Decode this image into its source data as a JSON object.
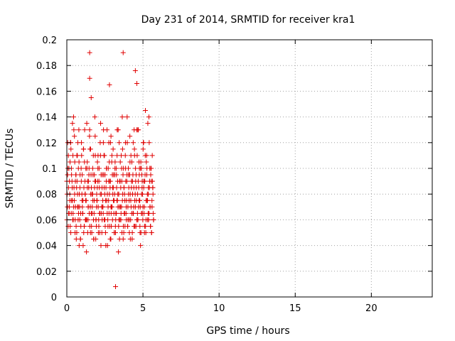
{
  "chart_data": {
    "type": "scatter",
    "title": "Day 231 of 2014, SRMTID for receiver kra1",
    "xlabel": "GPS time / hours",
    "ylabel": "SRMTID / TECUs",
    "xlim": [
      0,
      24
    ],
    "ylim": [
      0,
      0.2
    ],
    "xticks": [
      0,
      5,
      10,
      15,
      20
    ],
    "xtick_labels": [
      "0",
      "5",
      "10",
      "15",
      "20"
    ],
    "yticks": [
      0,
      0.02,
      0.04,
      0.06,
      0.08,
      0.1,
      0.12,
      0.14,
      0.16,
      0.18,
      0.2
    ],
    "ytick_labels": [
      "0",
      "0.02",
      "0.04",
      "0.06",
      "0.08",
      "0.1",
      "0.12",
      "0.14",
      "0.16",
      "0.18",
      "0.2"
    ],
    "grid": true,
    "marker": "+",
    "marker_color": "#e00000",
    "series": [
      {
        "name": "SRMTID",
        "x": [
          0.0,
          0.05,
          0.1,
          0.15,
          0.2,
          0.25,
          0.3,
          0.35,
          0.4,
          0.45,
          0.5,
          0.55,
          0.6,
          0.65,
          0.7,
          0.75,
          0.8,
          0.85,
          0.9,
          0.95,
          1.0,
          1.05,
          1.1,
          1.15,
          1.2,
          1.25,
          1.3,
          1.35,
          1.4,
          1.45,
          1.5,
          1.55,
          1.6,
          1.65,
          1.7,
          1.75,
          1.8,
          1.85,
          1.9,
          1.95,
          2.0,
          2.05,
          2.1,
          2.15,
          2.2,
          2.25,
          2.3,
          2.35,
          2.4,
          2.45,
          2.5,
          2.55,
          2.6,
          2.65,
          2.7,
          2.75,
          2.8,
          2.85,
          2.9,
          2.95,
          3.0,
          3.05,
          3.1,
          3.15,
          3.2,
          3.25,
          3.3,
          3.35,
          3.4,
          3.45,
          3.5,
          3.55,
          3.6,
          3.65,
          3.7,
          3.75,
          3.8,
          3.85,
          3.9,
          3.95,
          4.0,
          4.05,
          4.1,
          4.15,
          4.2,
          4.25,
          4.3,
          4.35,
          4.4,
          4.45,
          4.5,
          4.55,
          4.6,
          4.65,
          4.7,
          4.75,
          4.8,
          4.85,
          4.9,
          4.95,
          5.0,
          5.05,
          5.1,
          5.15,
          5.2,
          5.25,
          5.3,
          5.35,
          5.4,
          5.45,
          5.5,
          5.55,
          5.6,
          5.65,
          5.7,
          0.02,
          0.07,
          0.12,
          0.17,
          0.22,
          0.27,
          0.32,
          0.37,
          0.42,
          0.47,
          0.52,
          0.57,
          0.62,
          0.67,
          0.72,
          0.77,
          0.82,
          0.87,
          0.92,
          0.97,
          1.02,
          1.07,
          1.12,
          1.17,
          1.22,
          1.27,
          1.32,
          1.37,
          1.42,
          1.47,
          1.52,
          1.57,
          1.62,
          1.67,
          1.72,
          1.77,
          1.82,
          1.87,
          1.92,
          1.97,
          2.02,
          2.07,
          2.12,
          2.17,
          2.22,
          2.27,
          2.32,
          2.37,
          2.42,
          2.47,
          2.52,
          2.57,
          2.62,
          2.67,
          2.72,
          2.77,
          2.82,
          2.87,
          2.92,
          2.97,
          3.02,
          3.07,
          3.12,
          3.17,
          3.22,
          3.27,
          3.32,
          3.37,
          3.42,
          3.47,
          3.52,
          3.57,
          3.62,
          3.67,
          3.72,
          3.77,
          3.82,
          3.87,
          3.92,
          3.97,
          4.02,
          4.07,
          4.12,
          4.17,
          4.22,
          4.27,
          4.32,
          4.37,
          4.42,
          4.47,
          4.52,
          4.57,
          4.62,
          4.67,
          4.72,
          4.77,
          4.82,
          4.87,
          4.92,
          4.97,
          5.02,
          5.07,
          5.12,
          5.17,
          5.22,
          5.27,
          5.32,
          5.37,
          5.42,
          5.47,
          5.52,
          5.57,
          5.62,
          5.67,
          0.04,
          0.09,
          0.14,
          0.19,
          0.24,
          0.29,
          0.34,
          0.39,
          0.44,
          0.49,
          0.54,
          0.59,
          0.64,
          0.69,
          0.74,
          0.79,
          0.84,
          0.89,
          0.94,
          0.99,
          1.04,
          1.09,
          1.14,
          1.19,
          1.24,
          1.29,
          1.34,
          1.39,
          1.44,
          1.49,
          1.54,
          1.59,
          1.64,
          1.69,
          1.74,
          1.79,
          1.84,
          1.89,
          1.94,
          1.99,
          2.04,
          2.09,
          2.14,
          2.19,
          2.24,
          2.29,
          2.34,
          2.39,
          2.44,
          2.49,
          2.54,
          2.59,
          2.64,
          2.69,
          2.74,
          2.79,
          2.84,
          2.89,
          2.94,
          2.99,
          3.04,
          3.09,
          3.14,
          3.19,
          3.24,
          3.29,
          3.34,
          3.39,
          3.44,
          3.49,
          3.54,
          3.59,
          3.64,
          3.69,
          3.74,
          3.79,
          3.84,
          3.89,
          3.94,
          3.99,
          4.04,
          4.09,
          4.14,
          4.19,
          4.24,
          4.29,
          4.34,
          4.39,
          4.44,
          4.49,
          4.54,
          4.59,
          4.64,
          4.69,
          4.74,
          4.79,
          4.84,
          4.89,
          4.94,
          4.99,
          5.04,
          5.09,
          5.14,
          5.19,
          5.24,
          5.29,
          5.34,
          5.39,
          5.44,
          5.49,
          5.54,
          5.59,
          5.64,
          5.69,
          0.01,
          0.06,
          0.11,
          0.16,
          0.21,
          0.26,
          0.31,
          0.36,
          0.41,
          0.46,
          0.51,
          0.56,
          0.61,
          0.66,
          0.71,
          0.76,
          0.81,
          0.86,
          0.91,
          0.96,
          1.01,
          1.06,
          1.11,
          1.16,
          1.21,
          1.26,
          1.31,
          1.36,
          1.41,
          1.46,
          1.51,
          1.56,
          1.61,
          1.66,
          1.71,
          1.76,
          1.81,
          1.86,
          1.91,
          1.96,
          2.01,
          2.06,
          2.11,
          2.16,
          2.21,
          2.26,
          2.31,
          2.36,
          2.41,
          2.46,
          2.51,
          2.56,
          2.61,
          2.66,
          2.71,
          2.76,
          2.81,
          2.86,
          2.91,
          2.96,
          3.01,
          3.06,
          3.11,
          3.16,
          3.21,
          3.26,
          3.31,
          3.36,
          3.41,
          3.46,
          3.51,
          3.56,
          3.61,
          3.66,
          3.71,
          3.76,
          3.81,
          3.86,
          3.91,
          3.96,
          4.01,
          4.06,
          4.11,
          4.16,
          4.21,
          4.26,
          4.31,
          4.36,
          4.41,
          4.46,
          4.51,
          4.56,
          4.61,
          4.66,
          4.71,
          4.76,
          4.81,
          4.86,
          4.91,
          4.96,
          5.01,
          5.06,
          5.11,
          5.16,
          5.21,
          5.26,
          5.31,
          5.36,
          5.41,
          5.46,
          5.51,
          5.56,
          5.61,
          5.66,
          1.5,
          1.5,
          2.8,
          3.7,
          4.5,
          4.6,
          1.6,
          2.9,
          3.2
        ],
        "y": [
          0.09,
          0.095,
          0.11,
          0.065,
          0.075,
          0.12,
          0.1,
          0.085,
          0.11,
          0.07,
          0.125,
          0.06,
          0.095,
          0.05,
          0.08,
          0.07,
          0.105,
          0.06,
          0.045,
          0.09,
          0.075,
          0.065,
          0.115,
          0.055,
          0.08,
          0.1,
          0.06,
          0.085,
          0.07,
          0.095,
          0.13,
          0.05,
          0.065,
          0.08,
          0.1,
          0.06,
          0.075,
          0.09,
          0.045,
          0.07,
          0.085,
          0.11,
          0.055,
          0.065,
          0.08,
          0.095,
          0.05,
          0.07,
          0.12,
          0.085,
          0.06,
          0.075,
          0.1,
          0.065,
          0.055,
          0.09,
          0.08,
          0.045,
          0.07,
          0.105,
          0.06,
          0.085,
          0.075,
          0.095,
          0.05,
          0.065,
          0.11,
          0.08,
          0.055,
          0.07,
          0.09,
          0.06,
          0.1,
          0.075,
          0.045,
          0.085,
          0.065,
          0.12,
          0.07,
          0.095,
          0.055,
          0.08,
          0.06,
          0.105,
          0.075,
          0.09,
          0.05,
          0.065,
          0.085,
          0.11,
          0.07,
          0.095,
          0.06,
          0.08,
          0.13,
          0.075,
          0.055,
          0.1,
          0.065,
          0.09,
          0.07,
          0.085,
          0.05,
          0.11,
          0.06,
          0.095,
          0.075,
          0.08,
          0.065,
          0.1,
          0.055,
          0.09,
          0.07,
          0.085,
          0.06,
          0.08,
          0.1,
          0.065,
          0.09,
          0.055,
          0.115,
          0.075,
          0.135,
          0.06,
          0.085,
          0.105,
          0.07,
          0.045,
          0.09,
          0.12,
          0.065,
          0.08,
          0.095,
          0.055,
          0.11,
          0.07,
          0.04,
          0.085,
          0.13,
          0.06,
          0.075,
          0.1,
          0.05,
          0.09,
          0.065,
          0.115,
          0.08,
          0.055,
          0.07,
          0.095,
          0.045,
          0.085,
          0.11,
          0.06,
          0.075,
          0.09,
          0.05,
          0.1,
          0.065,
          0.135,
          0.08,
          0.06,
          0.07,
          0.095,
          0.11,
          0.055,
          0.085,
          0.075,
          0.04,
          0.1,
          0.065,
          0.09,
          0.12,
          0.055,
          0.07,
          0.08,
          0.095,
          0.05,
          0.105,
          0.065,
          0.085,
          0.075,
          0.13,
          0.06,
          0.09,
          0.07,
          0.11,
          0.05,
          0.08,
          0.1,
          0.065,
          0.055,
          0.09,
          0.075,
          0.12,
          0.06,
          0.085,
          0.095,
          0.045,
          0.07,
          0.105,
          0.08,
          0.065,
          0.13,
          0.055,
          0.09,
          0.075,
          0.11,
          0.06,
          0.085,
          0.1,
          0.07,
          0.05,
          0.095,
          0.08,
          0.12,
          0.065,
          0.09,
          0.055,
          0.105,
          0.075,
          0.135,
          0.06,
          0.085,
          0.07,
          0.1,
          0.05,
          0.09,
          0.065,
          0.07,
          0.055,
          0.1,
          0.08,
          0.12,
          0.065,
          0.09,
          0.06,
          0.14,
          0.075,
          0.05,
          0.095,
          0.085,
          0.11,
          0.06,
          0.13,
          0.07,
          0.045,
          0.1,
          0.08,
          0.065,
          0.115,
          0.055,
          0.09,
          0.075,
          0.035,
          0.105,
          0.06,
          0.085,
          0.125,
          0.07,
          0.095,
          0.05,
          0.08,
          0.11,
          0.065,
          0.14,
          0.09,
          0.055,
          0.075,
          0.1,
          0.06,
          0.085,
          0.12,
          0.04,
          0.07,
          0.095,
          0.065,
          0.11,
          0.08,
          0.05,
          0.09,
          0.13,
          0.06,
          0.075,
          0.105,
          0.085,
          0.045,
          0.07,
          0.095,
          0.115,
          0.065,
          0.08,
          0.055,
          0.1,
          0.075,
          0.09,
          0.035,
          0.12,
          0.06,
          0.085,
          0.07,
          0.14,
          0.095,
          0.05,
          0.08,
          0.11,
          0.065,
          0.09,
          0.055,
          0.1,
          0.075,
          0.125,
          0.06,
          0.085,
          0.045,
          0.095,
          0.07,
          0.115,
          0.08,
          0.055,
          0.13,
          0.065,
          0.09,
          0.105,
          0.075,
          0.04,
          0.1,
          0.085,
          0.06,
          0.12,
          0.07,
          0.095,
          0.05,
          0.11,
          0.08,
          0.065,
          0.14,
          0.09,
          0.055,
          0.1,
          0.075,
          0.085,
          0.06,
          0.06,
          0.12,
          0.085,
          0.07,
          0.105,
          0.05,
          0.095,
          0.075,
          0.065,
          0.13,
          0.08,
          0.09,
          0.055,
          0.11,
          0.07,
          0.1,
          0.04,
          0.085,
          0.065,
          0.12,
          0.095,
          0.075,
          0.05,
          0.105,
          0.08,
          0.06,
          0.135,
          0.09,
          0.07,
          0.1,
          0.055,
          0.115,
          0.085,
          0.065,
          0.075,
          0.045,
          0.095,
          0.125,
          0.06,
          0.08,
          0.105,
          0.07,
          0.09,
          0.05,
          0.11,
          0.065,
          0.085,
          0.075,
          0.13,
          0.06,
          0.095,
          0.04,
          0.1,
          0.08,
          0.07,
          0.12,
          0.055,
          0.09,
          0.065,
          0.11,
          0.085,
          0.075,
          0.05,
          0.1,
          0.06,
          0.095,
          0.13,
          0.07,
          0.08,
          0.045,
          0.105,
          0.065,
          0.09,
          0.115,
          0.055,
          0.085,
          0.075,
          0.1,
          0.06,
          0.14,
          0.07,
          0.095,
          0.05,
          0.08,
          0.11,
          0.065,
          0.09,
          0.12,
          0.055,
          0.075,
          0.1,
          0.085,
          0.06,
          0.13,
          0.07,
          0.095,
          0.05,
          0.105,
          0.08,
          0.065,
          0.115,
          0.09,
          0.055,
          0.145,
          0.075,
          0.1,
          0.06,
          0.085,
          0.12,
          0.07,
          0.095,
          0.05,
          0.11,
          0.08,
          0.19,
          0.17,
          0.165,
          0.19,
          0.176,
          0.166,
          0.155,
          0.125,
          0.008
        ]
      }
    ]
  }
}
